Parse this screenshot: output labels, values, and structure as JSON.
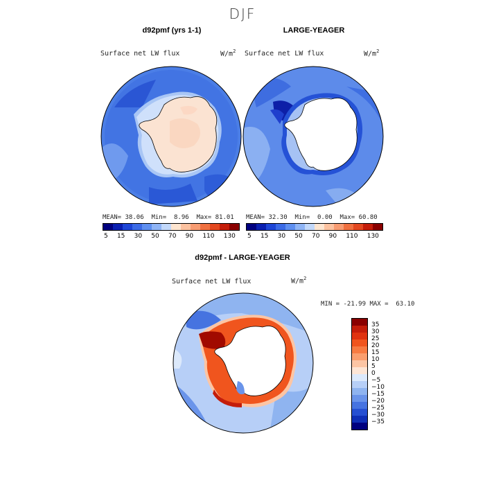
{
  "figure": {
    "title": "DJF"
  },
  "panels": [
    {
      "title": "d92pmf (yrs 1-1)",
      "variable": "Surface net LW flux",
      "units_base": "W/m",
      "units_exp": "2",
      "mean_label": "MEAN=",
      "mean": "38.06",
      "min_label": "Min=",
      "min": "8.96",
      "max_label": "Max=",
      "max": "81.01"
    },
    {
      "title": "LARGE-YEAGER",
      "variable": "Surface net LW flux",
      "units_base": "W/m",
      "units_exp": "2",
      "mean_label": "MEAN=",
      "mean": "32.30",
      "min_label": "Min=",
      "min": "0.00",
      "max_label": "Max=",
      "max": "60.80"
    },
    {
      "title": "d92pmf - LARGE-YEAGER",
      "variable": "Surface net LW flux",
      "units_base": "W/m",
      "units_exp": "2",
      "minmax": "MIN = -21.99 MAX =  63.10"
    }
  ],
  "colorbar_top": {
    "colors": [
      "#00007f",
      "#0a1fb0",
      "#1e46d6",
      "#3c6be6",
      "#5f8ff0",
      "#8fb4f5",
      "#c2d8fa",
      "#fde5d0",
      "#fcc2a0",
      "#f89c72",
      "#f07040",
      "#e34820",
      "#c41d0a",
      "#8a0000"
    ],
    "tick_labels": [
      "5",
      "15",
      "30",
      "50",
      "70",
      "90",
      "110",
      "130"
    ]
  },
  "colorbar_diff": {
    "colors": [
      "#8a0000",
      "#c41d0a",
      "#e03310",
      "#f0551e",
      "#f77b42",
      "#fa9e6e",
      "#fcc5a4",
      "#fde5d5",
      "#dce9fb",
      "#b7cff7",
      "#8fb4f0",
      "#6a94ea",
      "#4673e0",
      "#2650d2",
      "#0f2fb6",
      "#00007f"
    ],
    "labels": [
      "35",
      "30",
      "25",
      "20",
      "15",
      "10",
      "5",
      "0",
      "−5",
      "−10",
      "−15",
      "−20",
      "−25",
      "−30",
      "−35"
    ]
  }
}
